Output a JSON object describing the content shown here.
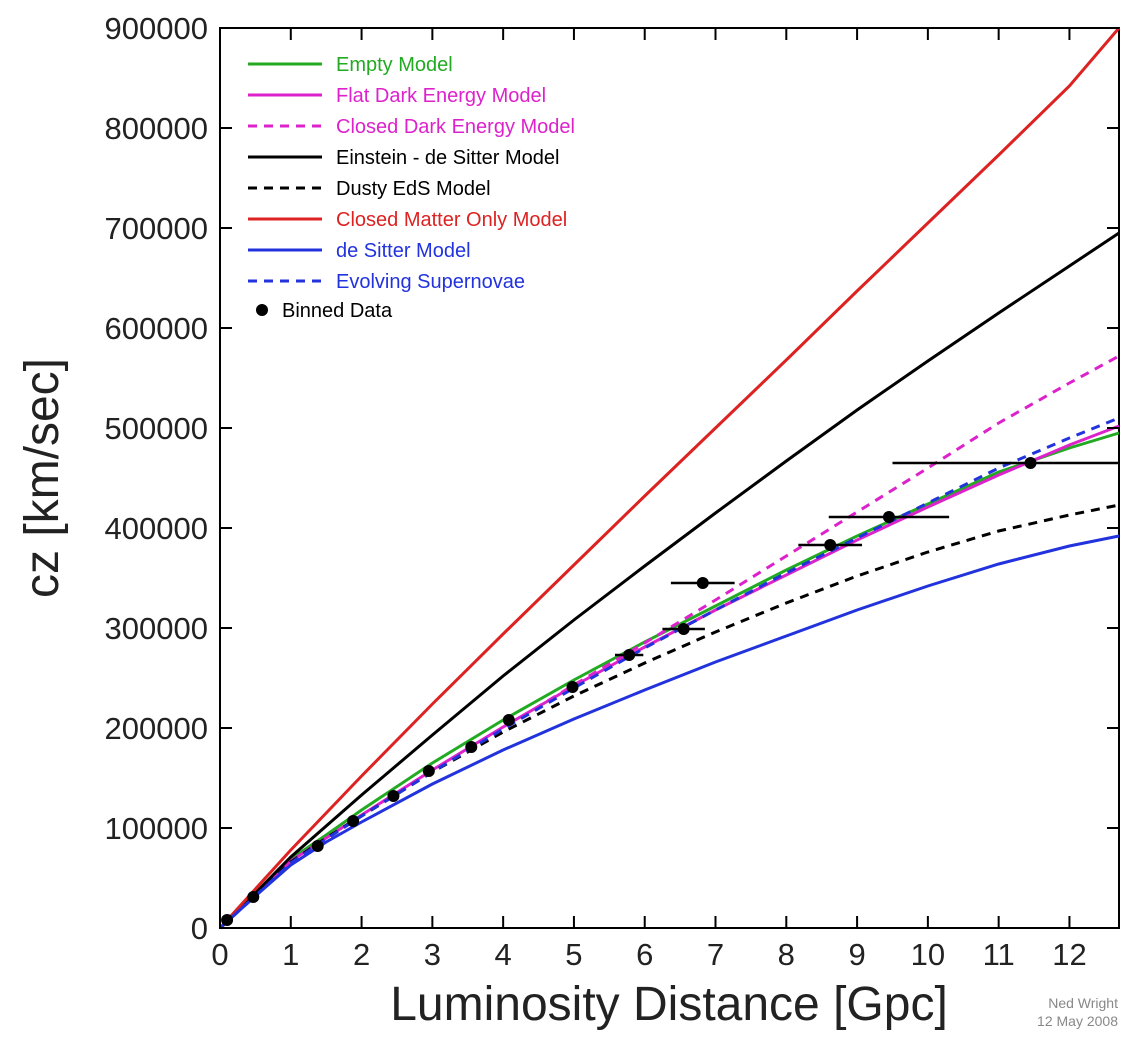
{
  "chart_data": {
    "type": "line",
    "xlabel": "Luminosity Distance [Gpc]",
    "ylabel": "cz [km/sec]",
    "xlim": [
      0,
      12.7
    ],
    "ylim": [
      0,
      900000
    ],
    "x_ticks": [
      0,
      1,
      2,
      3,
      4,
      5,
      6,
      7,
      8,
      9,
      10,
      11,
      12
    ],
    "y_ticks": [
      0,
      100000,
      200000,
      300000,
      400000,
      500000,
      600000,
      700000,
      800000,
      900000
    ],
    "grid": false,
    "legend_position": "top-left",
    "credit": [
      "Ned Wright",
      "12 May 2008"
    ],
    "series": [
      {
        "name": "Empty Model",
        "color": "#22aa22",
        "dash": "solid",
        "x": [
          0,
          0.5,
          1,
          1.5,
          2,
          3,
          4,
          5,
          6,
          7,
          8,
          9,
          10,
          11,
          12,
          12.7
        ],
        "y": [
          0,
          33000,
          69000,
          93000,
          118000,
          165000,
          208000,
          248000,
          286000,
          322000,
          358000,
          392000,
          424000,
          456000,
          480000,
          495000
        ]
      },
      {
        "name": "Flat Dark Energy Model",
        "color": "#dd22cc",
        "dash": "solid",
        "x": [
          0,
          0.5,
          1,
          1.5,
          2,
          3,
          4,
          5,
          6,
          7,
          8,
          9,
          10,
          11,
          12,
          12.7
        ],
        "y": [
          0,
          33000,
          67000,
          90000,
          113000,
          158000,
          201000,
          242000,
          281000,
          318000,
          353000,
          388000,
          421000,
          453000,
          483000,
          502000
        ]
      },
      {
        "name": "Closed Dark Energy Model",
        "color": "#dd22cc",
        "dash": "dashed",
        "x": [
          0,
          0.5,
          1,
          1.5,
          2,
          3,
          4,
          5,
          6,
          7,
          8,
          9,
          10,
          11,
          12,
          12.7
        ],
        "y": [
          0,
          33000,
          66000,
          89000,
          112000,
          157000,
          200000,
          243000,
          285000,
          328000,
          372000,
          416000,
          460000,
          505000,
          545000,
          572000
        ]
      },
      {
        "name": "Einstein - de Sitter Model",
        "color": "#000000",
        "dash": "solid",
        "x": [
          0,
          0.5,
          1,
          1.5,
          2,
          3,
          4,
          5,
          6,
          7,
          8,
          9,
          10,
          11,
          12,
          12.7
        ],
        "y": [
          0,
          35000,
          71000,
          102000,
          133000,
          193000,
          252000,
          308000,
          362000,
          415000,
          467000,
          518000,
          567000,
          615000,
          662000,
          695000
        ]
      },
      {
        "name": "Dusty EdS Model",
        "color": "#000000",
        "dash": "dashed",
        "x": [
          0,
          0.5,
          1,
          1.5,
          2,
          3,
          4,
          5,
          6,
          7,
          8,
          9,
          10,
          11,
          12,
          12.7
        ],
        "y": [
          0,
          33000,
          66000,
          90000,
          112000,
          156000,
          196000,
          232000,
          265000,
          296000,
          325000,
          352000,
          376000,
          397000,
          413000,
          423000
        ]
      },
      {
        "name": "Closed Matter Only Model",
        "color": "#dd2222",
        "dash": "solid",
        "x": [
          0,
          1,
          2,
          3,
          4,
          5,
          6,
          7,
          8,
          9,
          10,
          11,
          12,
          12.7
        ],
        "y": [
          0,
          78000,
          152000,
          224000,
          294000,
          363000,
          432000,
          500000,
          568000,
          637000,
          705000,
          773000,
          842000,
          900000
        ]
      },
      {
        "name": "de Sitter Model",
        "color": "#2233dd",
        "dash": "solid",
        "x": [
          0,
          0.5,
          1,
          1.5,
          2,
          3,
          4,
          5,
          6,
          7,
          8,
          9,
          10,
          11,
          12,
          12.7
        ],
        "y": [
          0,
          32000,
          63000,
          86000,
          106000,
          144000,
          178000,
          209000,
          238000,
          266000,
          292000,
          318000,
          342000,
          364000,
          382000,
          392000
        ]
      },
      {
        "name": "Evolving Supernovae",
        "color": "#2233dd",
        "dash": "dashed",
        "x": [
          0,
          0.5,
          1,
          1.5,
          2,
          3,
          4,
          5,
          6,
          7,
          8,
          9,
          10,
          11,
          12,
          12.7
        ],
        "y": [
          0,
          32000,
          65000,
          89000,
          112000,
          156000,
          199000,
          240000,
          280000,
          318000,
          355000,
          390000,
          425000,
          460000,
          490000,
          510000
        ]
      }
    ],
    "binned_data": {
      "name": "Binned Data",
      "color": "#000000",
      "points": [
        {
          "x": 0.1,
          "y": 8000,
          "xerr": 0
        },
        {
          "x": 0.47,
          "y": 31000,
          "xerr": 0
        },
        {
          "x": 1.38,
          "y": 82000,
          "xerr": 0
        },
        {
          "x": 1.88,
          "y": 107000,
          "xerr": 0
        },
        {
          "x": 2.45,
          "y": 132000,
          "xerr": 0
        },
        {
          "x": 2.95,
          "y": 157000,
          "xerr": 0
        },
        {
          "x": 3.55,
          "y": 181000,
          "xerr": 0
        },
        {
          "x": 4.08,
          "y": 208000,
          "xerr": 0
        },
        {
          "x": 4.98,
          "y": 241000,
          "xerr": 0
        },
        {
          "x": 5.78,
          "y": 273000,
          "xerr": 0.2
        },
        {
          "x": 6.55,
          "y": 299000,
          "xerr": 0.3
        },
        {
          "x": 6.82,
          "y": 345000,
          "xerr": 0.45
        },
        {
          "x": 8.62,
          "y": 383000,
          "xerr": 0.45
        },
        {
          "x": 9.45,
          "y": 411000,
          "xerr": 0.85
        },
        {
          "x": 11.45,
          "y": 465000,
          "xerr": 1.95
        }
      ]
    }
  }
}
